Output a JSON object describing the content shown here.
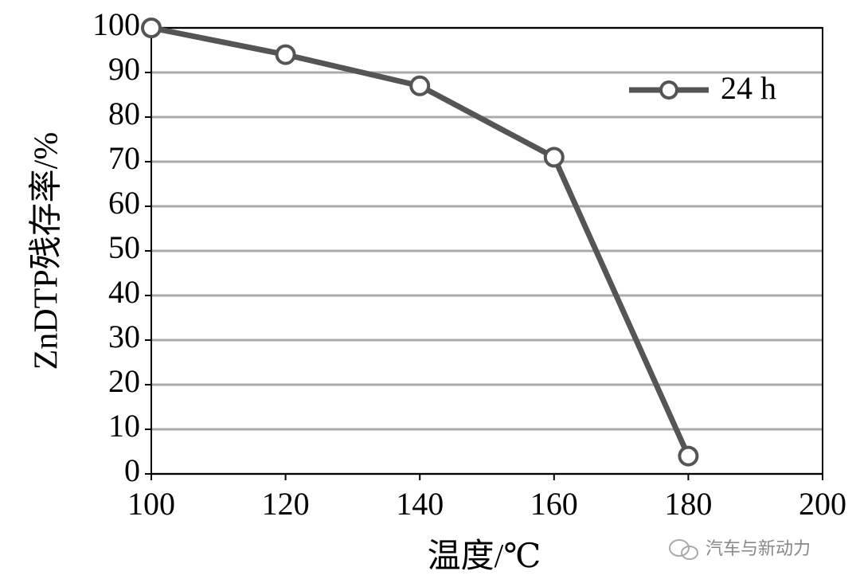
{
  "chart_data": {
    "type": "line",
    "x_label": "温度/℃",
    "y_label": "ZnDTP残存率/%",
    "x": [
      100,
      120,
      140,
      160,
      180
    ],
    "series": [
      {
        "name": "24 h",
        "color": "#555555",
        "values": [
          100,
          94,
          87,
          71,
          4
        ]
      }
    ],
    "xlim": [
      100,
      200
    ],
    "xticks": [
      100,
      120,
      140,
      160,
      180,
      200
    ],
    "ylim": [
      0,
      100
    ],
    "yticks": [
      0,
      10,
      20,
      30,
      40,
      50,
      60,
      70,
      80,
      90,
      100
    ],
    "grid": true,
    "legend": "upper right",
    "watermark": "汽车与新动力"
  }
}
